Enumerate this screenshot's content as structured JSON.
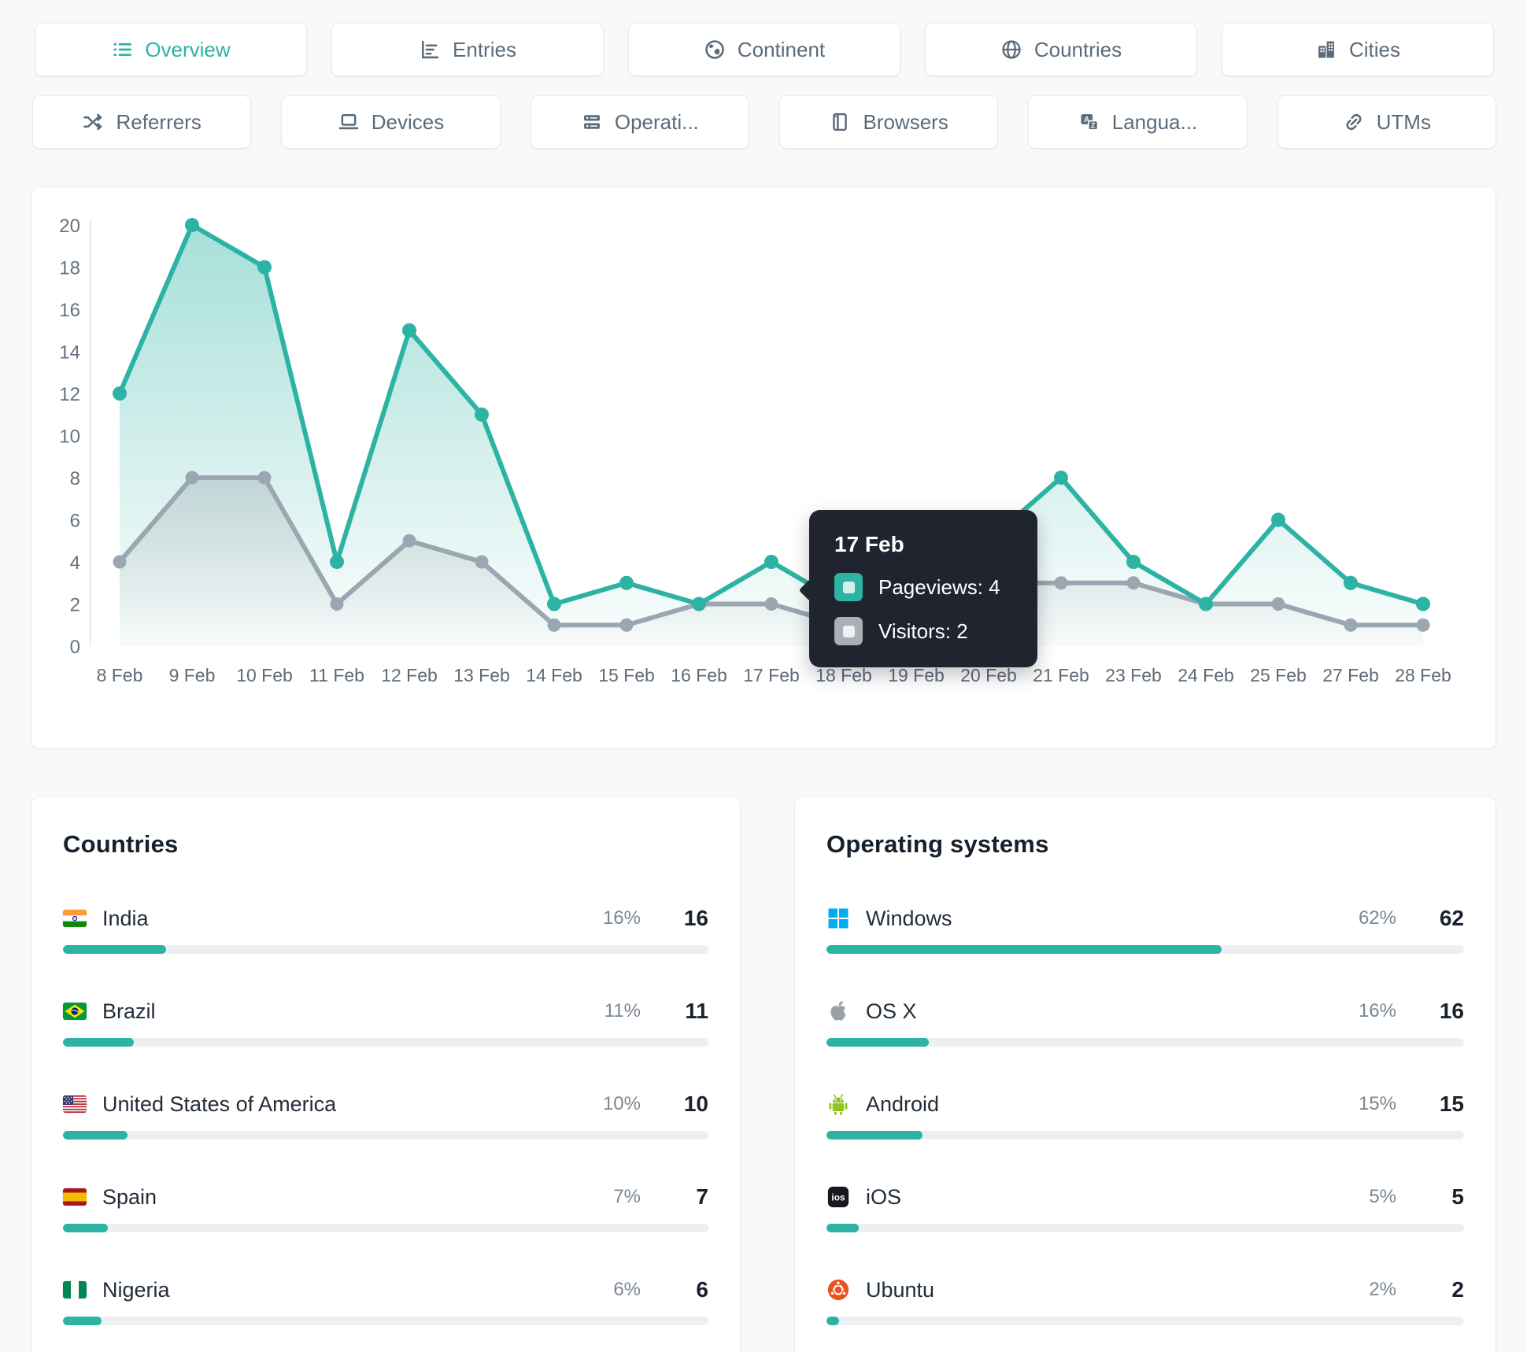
{
  "nav": {
    "row1": [
      {
        "label": "Overview",
        "icon": "list-icon",
        "active": true
      },
      {
        "label": "Entries",
        "icon": "entries-icon",
        "active": false
      },
      {
        "label": "Continent",
        "icon": "continent-icon",
        "active": false
      },
      {
        "label": "Countries",
        "icon": "globe-icon",
        "active": false
      },
      {
        "label": "Cities",
        "icon": "cities-icon",
        "active": false
      }
    ],
    "row2": [
      {
        "label": "Referrers",
        "icon": "shuffle-icon",
        "active": false
      },
      {
        "label": "Devices",
        "icon": "laptop-icon",
        "active": false
      },
      {
        "label": "Operati...",
        "icon": "server-icon",
        "active": false
      },
      {
        "label": "Browsers",
        "icon": "browser-icon",
        "active": false
      },
      {
        "label": "Langua...",
        "icon": "language-icon",
        "active": false
      },
      {
        "label": "UTMs",
        "icon": "link-icon",
        "active": false
      }
    ]
  },
  "chart_data": {
    "type": "area",
    "x": [
      "8 Feb",
      "9 Feb",
      "10 Feb",
      "11 Feb",
      "12 Feb",
      "13 Feb",
      "14 Feb",
      "15 Feb",
      "16 Feb",
      "17 Feb",
      "18 Feb",
      "19 Feb",
      "20 Feb",
      "21 Feb",
      "23 Feb",
      "24 Feb",
      "25 Feb",
      "27 Feb",
      "28 Feb"
    ],
    "series": [
      {
        "name": "Pageviews",
        "color": "#2db3a4",
        "values": [
          12,
          20,
          18,
          4,
          15,
          11,
          2,
          3,
          2,
          4,
          2,
          2,
          5,
          8,
          4,
          2,
          6,
          3,
          2
        ]
      },
      {
        "name": "Visitors",
        "color": "#9aa6b0",
        "values": [
          4,
          8,
          8,
          2,
          5,
          4,
          1,
          1,
          2,
          2,
          1,
          1,
          3,
          3,
          3,
          2,
          2,
          1,
          1
        ]
      }
    ],
    "ylim": [
      0,
      20
    ],
    "yticks": [
      0,
      2,
      4,
      6,
      8,
      10,
      12,
      14,
      16,
      18,
      20
    ],
    "grid": false,
    "legend_position": "tooltip-only"
  },
  "tooltip": {
    "title": "17 Feb",
    "rows": [
      {
        "label": "Pageviews: 4",
        "marker_color": "#2db3a4",
        "marker_inner": "#d6eeea"
      },
      {
        "label": "Visitors: 2",
        "marker_color": "#a7afb7",
        "marker_inner": "#eef0f2"
      }
    ]
  },
  "panels": {
    "countries": {
      "title": "Countries",
      "rows": [
        {
          "name": "India",
          "flag": "india",
          "percent": "16%",
          "value": "16",
          "pct": 16
        },
        {
          "name": "Brazil",
          "flag": "brazil",
          "percent": "11%",
          "value": "11",
          "pct": 11
        },
        {
          "name": "United States of America",
          "flag": "usa",
          "percent": "10%",
          "value": "10",
          "pct": 10
        },
        {
          "name": "Spain",
          "flag": "spain",
          "percent": "7%",
          "value": "7",
          "pct": 7
        },
        {
          "name": "Nigeria",
          "flag": "nigeria",
          "percent": "6%",
          "value": "6",
          "pct": 6
        }
      ]
    },
    "operating_systems": {
      "title": "Operating systems",
      "rows": [
        {
          "name": "Windows",
          "icon": "windows-icon",
          "percent": "62%",
          "value": "62",
          "pct": 62
        },
        {
          "name": "OS X",
          "icon": "apple-icon",
          "percent": "16%",
          "value": "16",
          "pct": 16
        },
        {
          "name": "Android",
          "icon": "android-icon",
          "percent": "15%",
          "value": "15",
          "pct": 15
        },
        {
          "name": "iOS",
          "icon": "ios-icon",
          "percent": "5%",
          "value": "5",
          "pct": 5
        },
        {
          "name": "Ubuntu",
          "icon": "ubuntu-icon",
          "percent": "2%",
          "value": "2",
          "pct": 2
        }
      ]
    }
  },
  "colors": {
    "accent": "#2db3a4",
    "secondary_line": "#9aa6b0",
    "tooltip_bg": "#1f242e",
    "bar_track": "#edf0f3",
    "axis_text": "#66727e"
  }
}
